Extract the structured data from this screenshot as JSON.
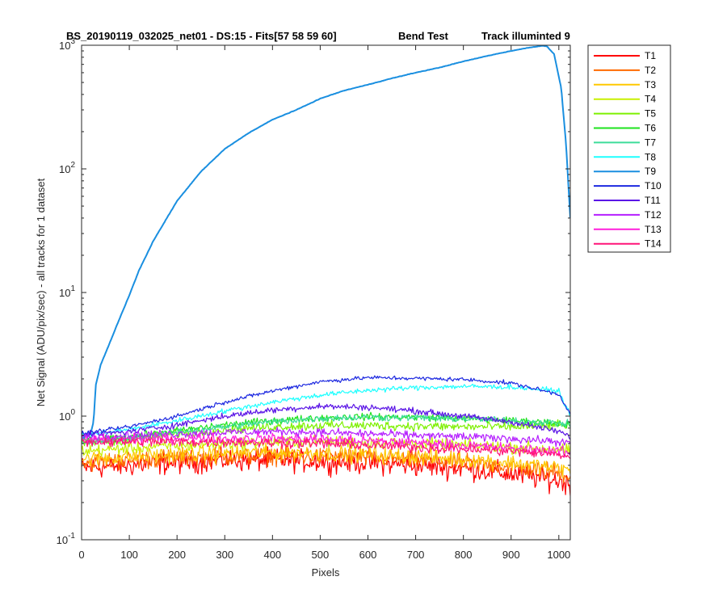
{
  "chart_data": {
    "type": "line",
    "title_parts": [
      "BS_20190119_032025_net01 - DS:15 - Fits[57  58  59  60]",
      "Bend Test",
      "Track illuminted 9"
    ],
    "xlabel": "Pixels",
    "ylabel": "Net Signal (ADU/pix/sec) - all tracks for 1 dataset",
    "xlim": [
      0,
      1024
    ],
    "ylim": [
      0.1,
      1000
    ],
    "y_scale": "log",
    "grid": false,
    "legend_position": "outside-right",
    "x_ticks": [
      "0",
      "100",
      "200",
      "300",
      "400",
      "500",
      "600",
      "700",
      "800",
      "900",
      "1000"
    ],
    "y_ticks": [
      {
        "base": "10",
        "exp": "-1"
      },
      {
        "base": "10",
        "exp": "0"
      },
      {
        "base": "10",
        "exp": "1"
      },
      {
        "base": "10",
        "exp": "2"
      },
      {
        "base": "10",
        "exp": "3"
      }
    ],
    "series": [
      {
        "name": "T1",
        "color": "#ff0000",
        "x": [
          0,
          100,
          200,
          300,
          400,
          500,
          600,
          700,
          800,
          900,
          1000,
          1024
        ],
        "y": [
          0.38,
          0.4,
          0.42,
          0.44,
          0.44,
          0.43,
          0.42,
          0.4,
          0.38,
          0.34,
          0.3,
          0.28
        ]
      },
      {
        "name": "T2",
        "color": "#ff6a00",
        "x": [
          0,
          100,
          200,
          300,
          400,
          500,
          600,
          700,
          800,
          900,
          1000,
          1024
        ],
        "y": [
          0.42,
          0.44,
          0.46,
          0.47,
          0.48,
          0.47,
          0.46,
          0.44,
          0.42,
          0.39,
          0.35,
          0.33
        ]
      },
      {
        "name": "T3",
        "color": "#ffc800",
        "x": [
          0,
          100,
          200,
          300,
          400,
          500,
          600,
          700,
          800,
          900,
          1000,
          1024
        ],
        "y": [
          0.45,
          0.47,
          0.49,
          0.5,
          0.51,
          0.5,
          0.49,
          0.47,
          0.45,
          0.42,
          0.38,
          0.36
        ]
      },
      {
        "name": "T4",
        "color": "#c8f000",
        "x": [
          0,
          100,
          200,
          300,
          400,
          500,
          600,
          700,
          800,
          900,
          1000,
          1024
        ],
        "y": [
          0.52,
          0.55,
          0.58,
          0.6,
          0.62,
          0.62,
          0.61,
          0.6,
          0.58,
          0.56,
          0.54,
          0.52
        ]
      },
      {
        "name": "T5",
        "color": "#7df000",
        "x": [
          0,
          100,
          200,
          300,
          400,
          500,
          600,
          700,
          800,
          900,
          1000,
          1024
        ],
        "y": [
          0.6,
          0.65,
          0.72,
          0.78,
          0.82,
          0.84,
          0.84,
          0.83,
          0.82,
          0.82,
          0.84,
          0.85
        ]
      },
      {
        "name": "T6",
        "color": "#1ee31e",
        "x": [
          0,
          100,
          200,
          300,
          400,
          500,
          600,
          700,
          800,
          900,
          1000,
          1024
        ],
        "y": [
          0.62,
          0.68,
          0.76,
          0.85,
          0.92,
          0.97,
          0.99,
          0.98,
          0.96,
          0.92,
          0.88,
          0.86
        ]
      },
      {
        "name": "T7",
        "color": "#3cdc9a",
        "x": [
          0,
          100,
          200,
          300,
          400,
          500,
          600,
          700,
          800,
          900,
          1000,
          1024
        ],
        "y": [
          0.6,
          0.66,
          0.74,
          0.82,
          0.9,
          0.96,
          0.98,
          0.97,
          0.95,
          0.92,
          0.88,
          0.86
        ]
      },
      {
        "name": "T8",
        "color": "#1effff",
        "x": [
          0,
          100,
          200,
          300,
          400,
          500,
          600,
          700,
          800,
          900,
          1000,
          1024
        ],
        "y": [
          0.7,
          0.78,
          0.92,
          1.1,
          1.3,
          1.48,
          1.62,
          1.7,
          1.74,
          1.72,
          1.6,
          1.0
        ]
      },
      {
        "name": "T9",
        "color": "#1a8fe0",
        "x": [
          0,
          10,
          20,
          25,
          30,
          40,
          60,
          80,
          100,
          120,
          150,
          200,
          250,
          300,
          350,
          400,
          450,
          500,
          550,
          600,
          650,
          700,
          750,
          800,
          850,
          900,
          940,
          965,
          975,
          990,
          1005,
          1015,
          1024
        ],
        "y": [
          0.65,
          0.7,
          0.75,
          0.9,
          1.8,
          2.6,
          4.0,
          6.2,
          9.5,
          15,
          26,
          55,
          95,
          145,
          195,
          250,
          300,
          370,
          430,
          480,
          540,
          600,
          660,
          740,
          820,
          900,
          960,
          990,
          980,
          850,
          450,
          160,
          40
        ]
      },
      {
        "name": "T10",
        "color": "#1c28e0",
        "x": [
          0,
          100,
          200,
          300,
          400,
          500,
          600,
          700,
          800,
          900,
          1000,
          1024
        ],
        "y": [
          0.72,
          0.82,
          1.0,
          1.3,
          1.6,
          1.9,
          2.05,
          2.02,
          1.98,
          1.85,
          1.5,
          1.05
        ]
      },
      {
        "name": "T11",
        "color": "#5a14e6",
        "x": [
          0,
          100,
          200,
          300,
          400,
          500,
          600,
          700,
          800,
          900,
          1000,
          1024
        ],
        "y": [
          0.7,
          0.75,
          0.85,
          1.0,
          1.12,
          1.2,
          1.18,
          1.1,
          1.0,
          0.9,
          0.75,
          0.68
        ]
      },
      {
        "name": "T12",
        "color": "#b41eff",
        "x": [
          0,
          100,
          200,
          300,
          400,
          500,
          600,
          700,
          800,
          900,
          1000,
          1024
        ],
        "y": [
          0.68,
          0.7,
          0.72,
          0.74,
          0.75,
          0.74,
          0.72,
          0.7,
          0.68,
          0.66,
          0.62,
          0.6
        ]
      },
      {
        "name": "T13",
        "color": "#ff1edc",
        "x": [
          0,
          100,
          200,
          300,
          400,
          500,
          600,
          700,
          800,
          900,
          1000,
          1024
        ],
        "y": [
          0.64,
          0.65,
          0.66,
          0.66,
          0.66,
          0.65,
          0.63,
          0.61,
          0.58,
          0.55,
          0.52,
          0.5
        ]
      },
      {
        "name": "T14",
        "color": "#ff1478",
        "x": [
          0,
          100,
          200,
          300,
          400,
          500,
          600,
          700,
          800,
          900,
          1000,
          1024
        ],
        "y": [
          0.62,
          0.62,
          0.62,
          0.62,
          0.61,
          0.6,
          0.58,
          0.56,
          0.54,
          0.52,
          0.49,
          0.47
        ]
      }
    ]
  }
}
